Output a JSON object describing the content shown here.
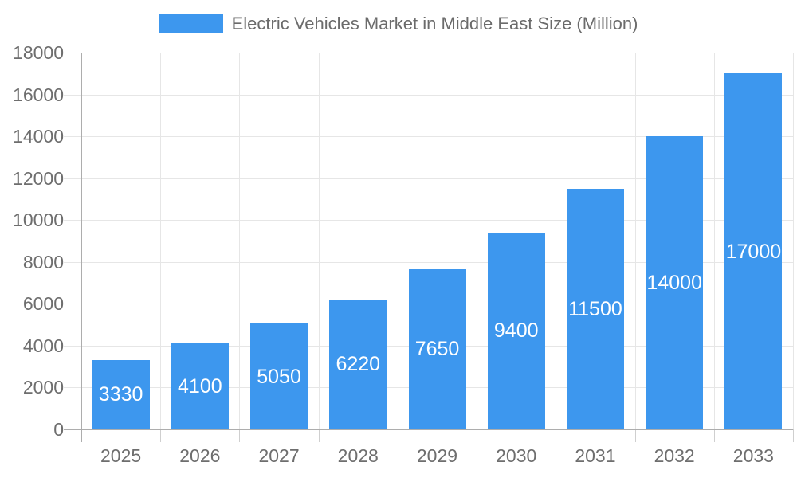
{
  "chart_data": {
    "type": "bar",
    "title": "Electric Vehicles Market in Middle East Size (Million)",
    "categories": [
      "2025",
      "2026",
      "2027",
      "2028",
      "2029",
      "2030",
      "2031",
      "2032",
      "2033"
    ],
    "values": [
      3330,
      4100,
      5050,
      6220,
      7650,
      9400,
      11500,
      14000,
      17000
    ],
    "xlabel": "",
    "ylabel": "",
    "ylim": [
      0,
      18000
    ],
    "ytick_step": 2000,
    "grid": true,
    "legend_position": "top",
    "value_label_position": "inside-center",
    "colors": {
      "bar": "#3d97ee",
      "value_label": "#ffffff",
      "axis_text": "#6e6e6e",
      "legend_text": "#6b6b6b",
      "gridline": "#e6e6e6",
      "axis_line": "#adadad",
      "background": "#ffffff"
    }
  }
}
